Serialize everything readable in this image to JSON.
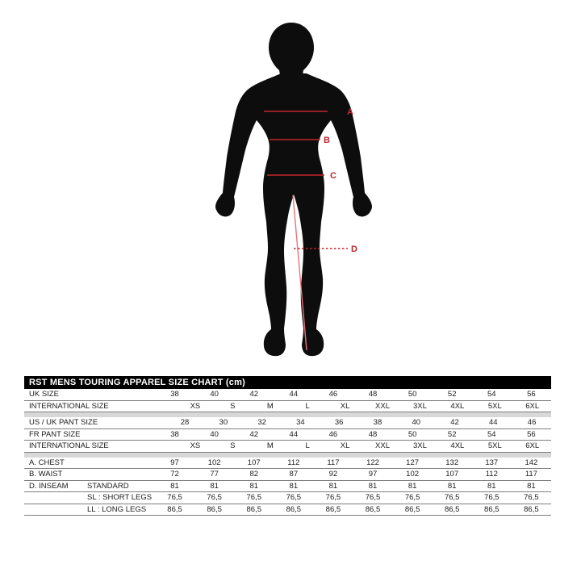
{
  "page": {
    "background_color": "#ffffff"
  },
  "figure": {
    "description_name": "mens-body-back-silhouette",
    "silhouette_color": "#0d0d0d",
    "measure_line_color": "#c1272d",
    "inseam_line_color": "#e8737a",
    "labels": {
      "a": "A",
      "b": "B",
      "c": "C",
      "d": "D"
    }
  },
  "table": {
    "title": "RST MENS TOURING APPAREL SIZE CHART (cm)",
    "title_bg": "#000000",
    "title_color": "#ffffff",
    "separator_color": "#d8d8d8",
    "rows": [
      {
        "label": "UK SIZE",
        "sub": "",
        "values": [
          "38",
          "40",
          "42",
          "44",
          "46",
          "48",
          "50",
          "52",
          "54",
          "56"
        ]
      },
      {
        "label": "INTERNATIONAL SIZE",
        "sub": "",
        "values": [
          "XS",
          "S",
          "M",
          "L",
          "XL",
          "XXL",
          "3XL",
          "4XL",
          "5XL",
          "6XL"
        ]
      },
      {
        "separator": true
      },
      {
        "label": "US / UK PANT SIZE",
        "sub": "",
        "values": [
          "28",
          "30",
          "32",
          "34",
          "36",
          "38",
          "40",
          "42",
          "44",
          "46"
        ]
      },
      {
        "label": "FR PANT SIZE",
        "sub": "",
        "values": [
          "38",
          "40",
          "42",
          "44",
          "46",
          "48",
          "50",
          "52",
          "54",
          "56"
        ]
      },
      {
        "label": "INTERNATIONAL SIZE",
        "sub": "",
        "values": [
          "XS",
          "S",
          "M",
          "L",
          "XL",
          "XXL",
          "3XL",
          "4XL",
          "5XL",
          "6XL"
        ]
      },
      {
        "separator": true
      },
      {
        "label": "A. CHEST",
        "sub": "",
        "values": [
          "97",
          "102",
          "107",
          "112",
          "117",
          "122",
          "127",
          "132",
          "137",
          "142"
        ]
      },
      {
        "label": "B. WAIST",
        "sub": "",
        "values": [
          "72",
          "77",
          "82",
          "87",
          "92",
          "97",
          "102",
          "107",
          "112",
          "117"
        ]
      },
      {
        "label": "D. INSEAM",
        "sub": "STANDARD",
        "values": [
          "81",
          "81",
          "81",
          "81",
          "81",
          "81",
          "81",
          "81",
          "81",
          "81"
        ]
      },
      {
        "label": "",
        "sub": "SL : SHORT LEGS",
        "values": [
          "76,5",
          "76,5",
          "76,5",
          "76,5",
          "76,5",
          "76,5",
          "76,5",
          "76,5",
          "76,5",
          "76,5"
        ]
      },
      {
        "label": "",
        "sub": "LL : LONG LEGS",
        "values": [
          "86,5",
          "86,5",
          "86,5",
          "86,5",
          "86,5",
          "86,5",
          "86,5",
          "86,5",
          "86,5",
          "86,5"
        ]
      }
    ]
  }
}
